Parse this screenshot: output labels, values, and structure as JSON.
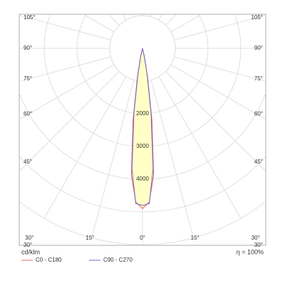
{
  "chart_data": {
    "type": "polar",
    "r_unit_label": "cd/klm",
    "efficiency_label": "η = 100%",
    "theta": [
      -15,
      -12.5,
      -10,
      -7.5,
      -5,
      -2.5,
      0,
      2.5,
      5,
      7.5,
      10,
      12.5,
      15
    ],
    "series": [
      {
        "name": "C0 - C180",
        "color": "#e8636b",
        "values": [
          0,
          300,
          900,
          2200,
          3900,
          4700,
          4900,
          4700,
          3900,
          2200,
          900,
          300,
          0
        ]
      },
      {
        "name": "C90 - C270",
        "color": "#7064c8",
        "values": [
          0,
          250,
          800,
          2000,
          3700,
          4750,
          4800,
          4750,
          3700,
          2000,
          800,
          250,
          0
        ]
      }
    ],
    "fill_color": "#ffffc0",
    "rlim": [
      0,
      5000
    ],
    "rticks": [
      2000,
      3000,
      4000
    ],
    "theta_ticks": [
      {
        "value": 0,
        "label": "0°"
      },
      {
        "value": 15,
        "label": "15°"
      },
      {
        "value": 30,
        "label": "30°"
      },
      {
        "value": 45,
        "label": "45°"
      },
      {
        "value": 60,
        "label": "60°"
      },
      {
        "value": 75,
        "label": "75°"
      },
      {
        "value": 90,
        "label": "90°"
      },
      {
        "value": 105,
        "label": "105°"
      }
    ]
  }
}
